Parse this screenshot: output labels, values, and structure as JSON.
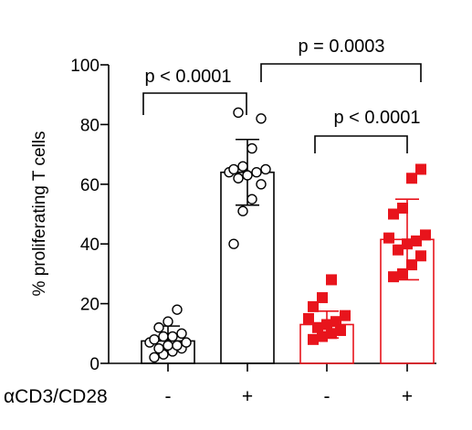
{
  "chart_data": {
    "type": "bar",
    "ylabel": "% proliferating T cells",
    "ylim": [
      0,
      100
    ],
    "yticks": [
      0,
      20,
      40,
      60,
      80,
      100
    ],
    "row_label": "αCD3/CD28",
    "categories": [
      "-",
      "+",
      "-",
      "+"
    ],
    "bar_colors": [
      "#000000",
      "#000000",
      "#e8141c",
      "#e8141c"
    ],
    "marker_styles": [
      "open-circle",
      "open-circle",
      "filled-square",
      "filled-square"
    ],
    "bars": [
      {
        "mean": 7.5,
        "sd_low": 4.5,
        "sd_high": 12.5,
        "points": [
          2,
          3,
          4,
          5,
          5,
          6,
          6,
          7,
          7,
          8,
          9,
          9,
          10,
          12,
          14,
          18
        ]
      },
      {
        "mean": 64,
        "sd_low": 53,
        "sd_high": 75,
        "points": [
          40,
          51,
          55,
          60,
          62,
          63,
          64,
          64,
          65,
          65,
          66,
          72,
          82,
          84
        ]
      },
      {
        "mean": 13,
        "sd_low": 8.5,
        "sd_high": 17.5,
        "points": [
          8,
          9,
          10,
          11,
          12,
          13,
          14,
          15,
          16,
          19,
          22,
          28
        ]
      },
      {
        "mean": 41.5,
        "sd_low": 28,
        "sd_high": 55,
        "points": [
          29,
          30,
          33,
          36,
          38,
          40,
          41,
          42,
          43,
          50,
          52,
          62,
          65
        ]
      }
    ],
    "comparisons": [
      {
        "from": 0,
        "to": 1,
        "label": "p < 0.0001"
      },
      {
        "from": 1,
        "to": 3,
        "label": "p = 0.0003"
      },
      {
        "from": 2,
        "to": 3,
        "label": "p < 0.0001"
      }
    ]
  }
}
